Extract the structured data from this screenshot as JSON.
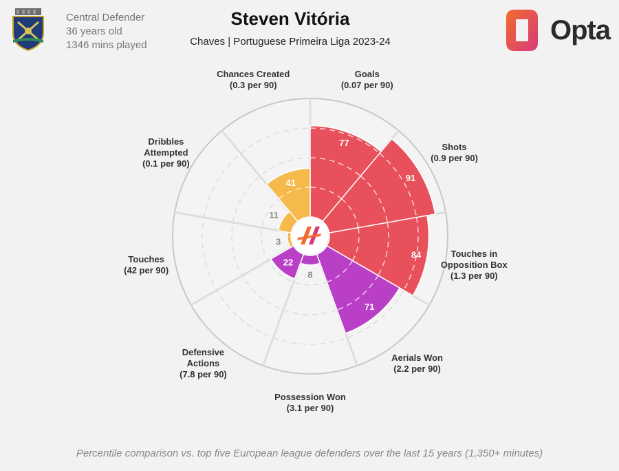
{
  "header": {
    "title": "Steven Vitória",
    "subtitle": "Chaves | Portuguese Primeira Liga 2023-24",
    "position": "Central Defender",
    "age": "36 years old",
    "minutes": "1346 mins played",
    "brand": "Opta"
  },
  "footnote": "Percentile comparison vs. top five European league defenders over the last 15 years (1,350+ minutes)",
  "colors": {
    "attacking": "#e8505b",
    "defending": "#b93fc7",
    "possession": "#f5b94c",
    "background": "#f2f2f2",
    "grid": "#dddddd",
    "outer_ring": "#c8c8c8",
    "logo_orange": "#f26b2b",
    "logo_pink": "#d63a7a"
  },
  "chart_data": {
    "type": "polar-bar",
    "title": "Steven Vitória",
    "rlim": [
      0,
      100
    ],
    "metrics": [
      {
        "name": "Goals",
        "per90": "(0.07 per 90)",
        "percentile": 77,
        "group": "attacking"
      },
      {
        "name": "Shots",
        "per90": "(0.9 per 90)",
        "percentile": 91,
        "group": "attacking"
      },
      {
        "name": "Touches in Opposition Box",
        "name_lines": [
          "Touches in",
          "Opposition Box"
        ],
        "per90": "(1.3 per 90)",
        "percentile": 84,
        "group": "attacking"
      },
      {
        "name": "Aerials Won",
        "per90": "(2.2 per 90)",
        "percentile": 71,
        "group": "defending"
      },
      {
        "name": "Possession Won",
        "per90": "(3.1 per 90)",
        "percentile": 8,
        "group": "defending"
      },
      {
        "name": "Defensive Actions",
        "name_lines": [
          "Defensive",
          "Actions"
        ],
        "per90": "(7.8 per 90)",
        "percentile": 22,
        "group": "defending"
      },
      {
        "name": "Touches",
        "per90": "(42 per 90)",
        "percentile": 3,
        "group": "possession"
      },
      {
        "name": "Dribbles Attempted",
        "name_lines": [
          "Dribbles",
          "Attempted"
        ],
        "per90": "(0.1 per 90)",
        "percentile": 11,
        "group": "possession"
      },
      {
        "name": "Chances Created",
        "per90": "(0.3 per 90)",
        "percentile": 41,
        "group": "possession"
      }
    ]
  }
}
